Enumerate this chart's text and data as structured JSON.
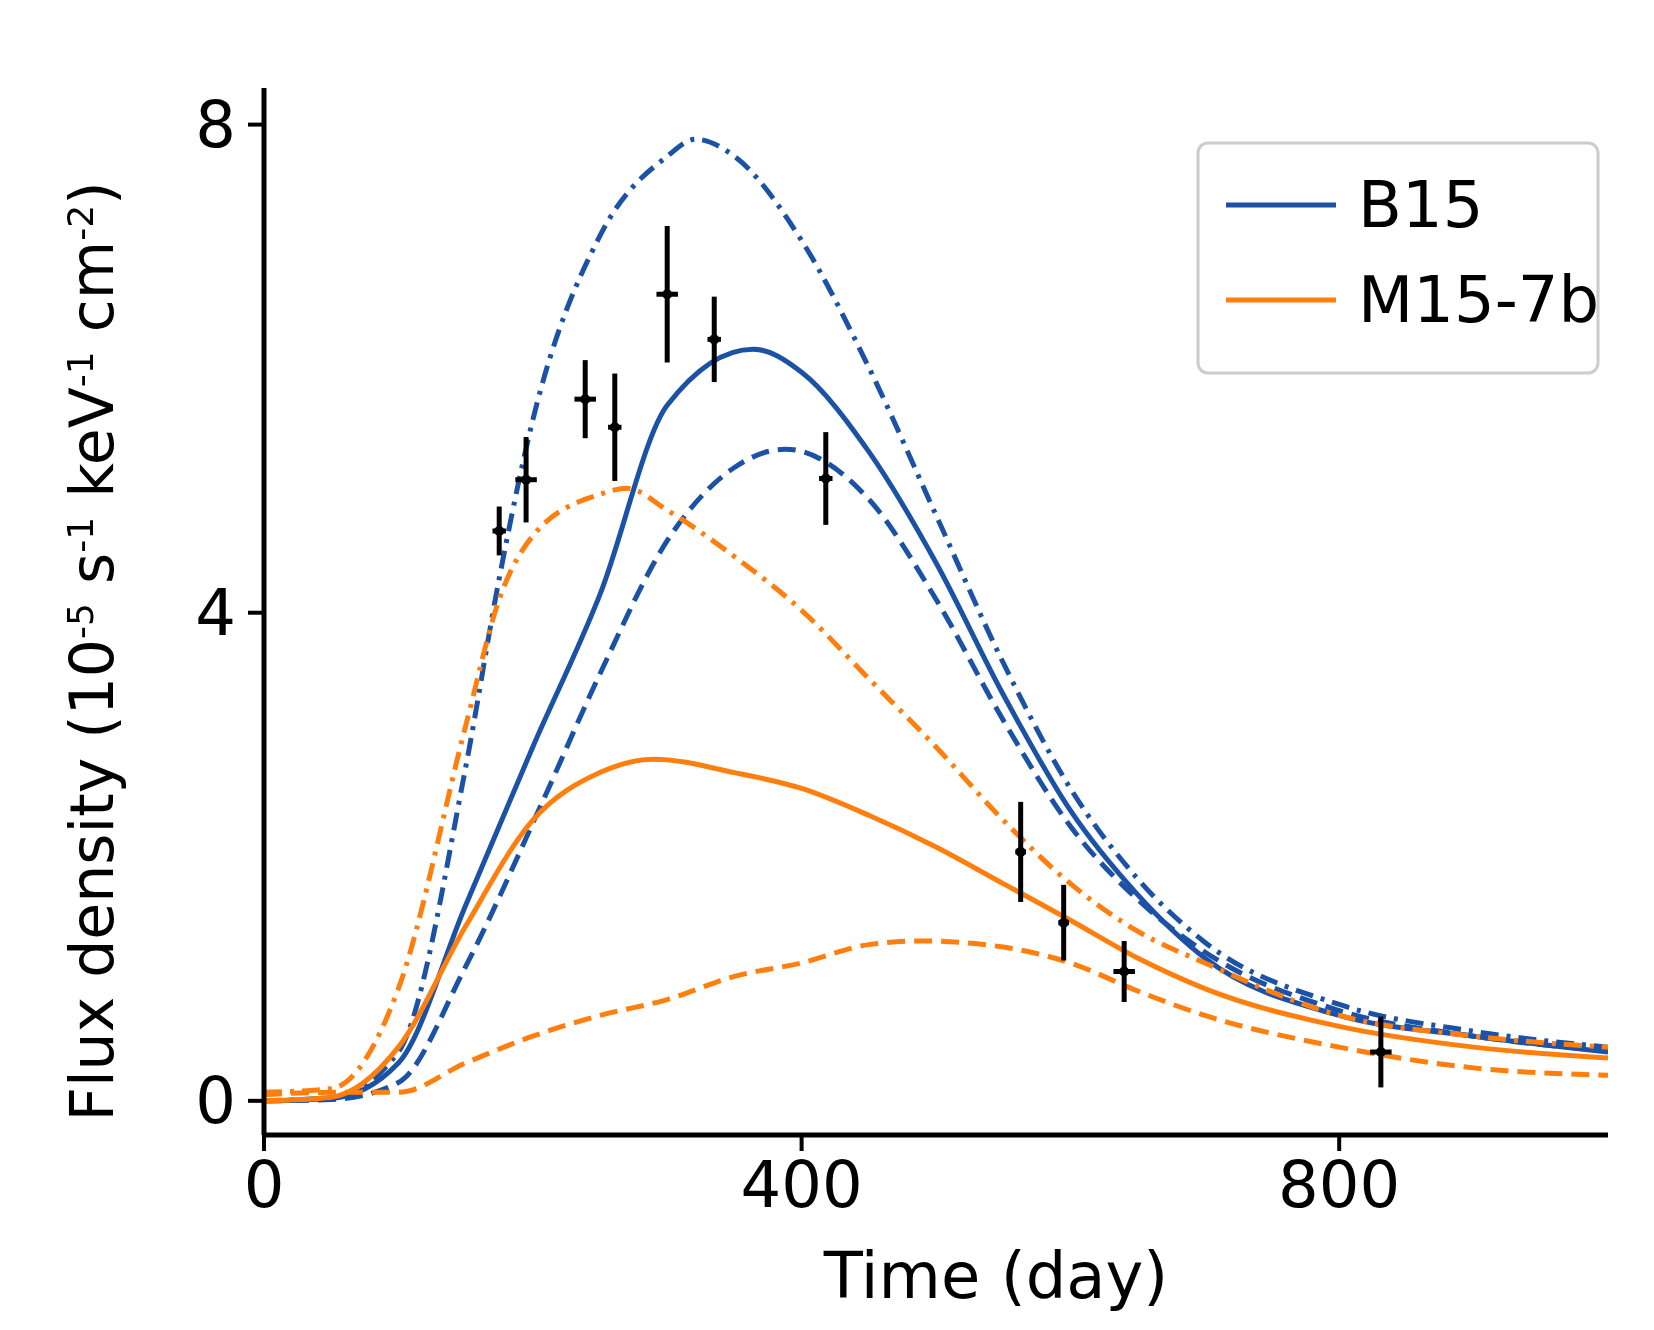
{
  "chart_data": {
    "type": "line",
    "xlabel": "Time (day)",
    "ylabel": "Flux density (10$^{-5}$ s$^{-1}$ keV$^{-1}$ cm$^{-2}$)",
    "xlim": [
      0,
      1000
    ],
    "ylim": [
      -0.28,
      8.3
    ],
    "xticks": [
      0,
      400,
      800
    ],
    "yticks": [
      0,
      4,
      8
    ],
    "legend": "top right",
    "grid": false,
    "series": [
      {
        "name": "B15",
        "color": "#1c52a6",
        "line_style": "solid",
        "x": [
          0,
          50,
          100,
          150,
          200,
          250,
          300,
          364,
          400,
          450,
          500,
          550,
          600,
          650,
          700,
          800,
          900,
          1000
        ],
        "values": [
          0,
          0.02,
          0.31,
          1.6,
          2.9,
          4.15,
          5.7,
          6.16,
          5.97,
          5.32,
          4.41,
          3.33,
          2.38,
          1.69,
          1.17,
          0.7,
          0.53,
          0.4
        ]
      },
      {
        "color": "#1c52a6",
        "line_style": "dashed",
        "x": [
          0,
          50,
          100,
          150,
          208,
          250,
          300,
          350,
          388,
          450,
          500,
          550,
          600,
          650,
          700,
          800,
          900,
          1000
        ],
        "values": [
          0,
          0.01,
          0.15,
          1.1,
          2.47,
          3.5,
          4.59,
          5.19,
          5.34,
          4.93,
          4.11,
          3.12,
          2.25,
          1.65,
          1.22,
          0.74,
          0.53,
          0.41
        ]
      },
      {
        "color": "#1c52a6",
        "line_style": "dashdot",
        "x": [
          0,
          50,
          100,
          150,
          175,
          200,
          250,
          300,
          321,
          350,
          400,
          450,
          500,
          550,
          600,
          650,
          700,
          800,
          900,
          1000
        ],
        "values": [
          0,
          0.03,
          0.4,
          2.73,
          4.28,
          5.58,
          7.09,
          7.74,
          7.88,
          7.74,
          7.05,
          6.01,
          4.8,
          3.59,
          2.56,
          1.82,
          1.3,
          0.79,
          0.57,
          0.44
        ]
      },
      {
        "name": "M15-7b",
        "color": "#ff7f0e",
        "line_style": "solid",
        "x": [
          0,
          50,
          100,
          150,
          200,
          250,
          290,
          350,
          400,
          450,
          500,
          550,
          600,
          650,
          700,
          800,
          900,
          1000
        ],
        "values": [
          0,
          0.03,
          0.44,
          1.43,
          2.3,
          2.69,
          2.8,
          2.69,
          2.56,
          2.34,
          2.08,
          1.78,
          1.48,
          1.17,
          0.92,
          0.61,
          0.44,
          0.35
        ]
      },
      {
        "color": "#ff7f0e",
        "line_style": "dashed",
        "x": [
          0,
          50,
          100,
          150,
          200,
          250,
          300,
          350,
          400,
          450,
          490,
          550,
          600,
          650,
          700,
          800,
          900,
          1000
        ],
        "values": [
          0.05,
          0.07,
          0.07,
          0.31,
          0.53,
          0.7,
          0.83,
          1.02,
          1.13,
          1.28,
          1.31,
          1.26,
          1.13,
          0.9,
          0.7,
          0.44,
          0.27,
          0.21
        ]
      },
      {
        "color": "#ff7f0e",
        "line_style": "dashdot",
        "x": [
          0,
          50,
          100,
          150,
          175,
          200,
          250,
          270,
          300,
          350,
          400,
          450,
          500,
          550,
          600,
          650,
          700,
          800,
          900,
          1000
        ],
        "values": [
          0.07,
          0.1,
          0.92,
          3.07,
          4.11,
          4.63,
          4.97,
          5.02,
          4.84,
          4.46,
          4.02,
          3.46,
          2.9,
          2.3,
          1.78,
          1.39,
          1.13,
          0.7,
          0.53,
          0.44
        ]
      },
      {
        "type": "scatter",
        "color": "#000000",
        "marker": "circle",
        "x": [
          175,
          195,
          239,
          261,
          300,
          335,
          418,
          563,
          595,
          640,
          831
        ],
        "values": [
          4.67,
          5.09,
          5.75,
          5.52,
          6.61,
          6.24,
          5.1,
          2.04,
          1.46,
          1.06,
          0.4
        ],
        "errors": [
          0.2,
          0.35,
          0.32,
          0.44,
          0.56,
          0.35,
          0.38,
          0.41,
          0.31,
          0.25,
          0.29
        ],
        "xerrors": [
          5,
          8,
          8,
          5,
          8,
          5,
          5,
          4,
          4,
          8,
          8
        ]
      }
    ]
  }
}
